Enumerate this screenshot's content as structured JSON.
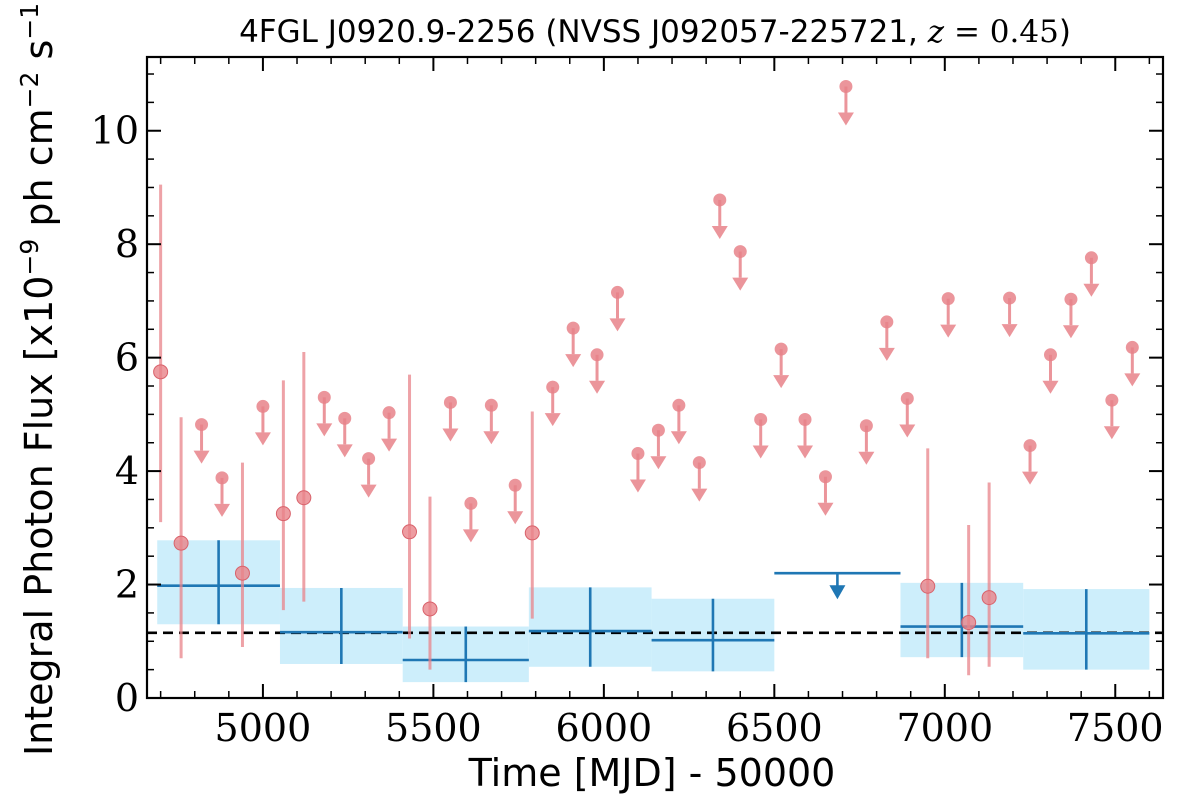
{
  "chart_data": {
    "type": "scatter",
    "title": "4FGL J0920.9-2256 (NVSS J092057-225721, z = 0.45)",
    "title_parts": {
      "pre": "4FGL J0920.9-2256 (NVSS J092057-225721, ",
      "z": "z",
      "eq": " = ",
      "val": "0.45",
      "post": ")"
    },
    "xlabel": "Time [MJD] - 50000",
    "ylabel": "Integral Photon Flux [x10⁻⁹ ph cm⁻² s⁻¹]",
    "ylabel_parts": {
      "pre": "Integral Photon Flux [x10",
      "exp1": "−9",
      "mid": " ph cm",
      "exp2": "−2",
      "mid2": " s",
      "exp3": "−1",
      "post": "]"
    },
    "xlim": [
      4660,
      7640
    ],
    "ylim": [
      0,
      11.3
    ],
    "xticks": [
      5000,
      5500,
      6000,
      6500,
      7000,
      7500
    ],
    "xtick_labels": [
      "5000",
      "5500",
      "6000",
      "6500",
      "7000",
      "7500"
    ],
    "yticks": [
      0,
      2,
      4,
      6,
      8,
      10
    ],
    "ytick_labels": [
      "0",
      "2",
      "4",
      "6",
      "8",
      "10"
    ],
    "grid": false,
    "legend": "none",
    "reference_line": {
      "y": 1.15,
      "style": "dashed",
      "color": "#000000"
    },
    "colors": {
      "monthly": "#e8838a",
      "long_bin": "#1f77b4",
      "long_bin_fill": "#cdeefb"
    },
    "series": [
      {
        "points": [
          {
            "x": 4700,
            "y": 5.75,
            "lo": 3.1,
            "hi": 9.05
          },
          {
            "x": 4760,
            "y": 2.73,
            "lo": 0.7,
            "hi": 4.95
          },
          {
            "x": 4940,
            "y": 2.2,
            "lo": 0.9,
            "hi": 4.15
          },
          {
            "x": 5060,
            "y": 3.25,
            "lo": 1.55,
            "hi": 5.6
          },
          {
            "x": 5120,
            "y": 3.53,
            "lo": 1.7,
            "hi": 6.1
          },
          {
            "x": 5430,
            "y": 2.93,
            "lo": 1.05,
            "hi": 5.7
          },
          {
            "x": 5490,
            "y": 1.57,
            "lo": 0.5,
            "hi": 3.55
          },
          {
            "x": 5790,
            "y": 2.91,
            "lo": 1.4,
            "hi": 5.05
          },
          {
            "x": 6950,
            "y": 1.97,
            "lo": 0.7,
            "hi": 4.4
          },
          {
            "x": 7070,
            "y": 1.33,
            "lo": 0.4,
            "hi": 3.05
          },
          {
            "x": 7130,
            "y": 1.77,
            "lo": 0.55,
            "hi": 3.8
          }
        ]
      },
      {
        "upper_limits": [
          {
            "x": 4820,
            "y": 4.82
          },
          {
            "x": 4880,
            "y": 3.88
          },
          {
            "x": 5000,
            "y": 5.14
          },
          {
            "x": 5180,
            "y": 5.3
          },
          {
            "x": 5240,
            "y": 4.93
          },
          {
            "x": 5310,
            "y": 4.22
          },
          {
            "x": 5370,
            "y": 5.03
          },
          {
            "x": 5550,
            "y": 5.21
          },
          {
            "x": 5610,
            "y": 3.43
          },
          {
            "x": 5670,
            "y": 5.16
          },
          {
            "x": 5740,
            "y": 3.75
          },
          {
            "x": 5850,
            "y": 5.48
          },
          {
            "x": 5910,
            "y": 6.52
          },
          {
            "x": 5980,
            "y": 6.05
          },
          {
            "x": 6040,
            "y": 7.15
          },
          {
            "x": 6100,
            "y": 4.31
          },
          {
            "x": 6160,
            "y": 4.72
          },
          {
            "x": 6220,
            "y": 5.16
          },
          {
            "x": 6280,
            "y": 4.15
          },
          {
            "x": 6340,
            "y": 8.78
          },
          {
            "x": 6400,
            "y": 7.87
          },
          {
            "x": 6460,
            "y": 4.91
          },
          {
            "x": 6520,
            "y": 6.15
          },
          {
            "x": 6590,
            "y": 4.91
          },
          {
            "x": 6650,
            "y": 3.9
          },
          {
            "x": 6710,
            "y": 10.78
          },
          {
            "x": 6770,
            "y": 4.8
          },
          {
            "x": 6830,
            "y": 6.63
          },
          {
            "x": 6890,
            "y": 5.28
          },
          {
            "x": 7010,
            "y": 7.04
          },
          {
            "x": 7190,
            "y": 7.05
          },
          {
            "x": 7250,
            "y": 4.45
          },
          {
            "x": 7310,
            "y": 6.05
          },
          {
            "x": 7370,
            "y": 7.03
          },
          {
            "x": 7430,
            "y": 7.76
          },
          {
            "x": 7490,
            "y": 5.25
          },
          {
            "x": 7550,
            "y": 6.18
          }
        ]
      },
      {
        "bins": [
          {
            "x0": 4690,
            "x1": 5050,
            "xc": 4870,
            "y": 1.98,
            "lo": 1.3,
            "hi": 2.78
          },
          {
            "x0": 5050,
            "x1": 5410,
            "xc": 5230,
            "y": 1.16,
            "lo": 0.6,
            "hi": 1.94
          },
          {
            "x0": 5410,
            "x1": 5780,
            "xc": 5595,
            "y": 0.67,
            "lo": 0.28,
            "hi": 1.26
          },
          {
            "x0": 5780,
            "x1": 6140,
            "xc": 5960,
            "y": 1.18,
            "lo": 0.55,
            "hi": 1.95
          },
          {
            "x0": 6140,
            "x1": 6500,
            "xc": 6320,
            "y": 1.02,
            "lo": 0.47,
            "hi": 1.75
          },
          {
            "x0": 6870,
            "x1": 7230,
            "xc": 7050,
            "y": 1.26,
            "lo": 0.72,
            "hi": 2.03
          },
          {
            "x0": 7230,
            "x1": 7600,
            "xc": 7415,
            "y": 1.14,
            "lo": 0.5,
            "hi": 1.92
          }
        ],
        "bin_upper_limits": [
          {
            "x0": 6500,
            "x1": 6870,
            "xc": 6685,
            "y": 2.2
          }
        ]
      }
    ]
  }
}
